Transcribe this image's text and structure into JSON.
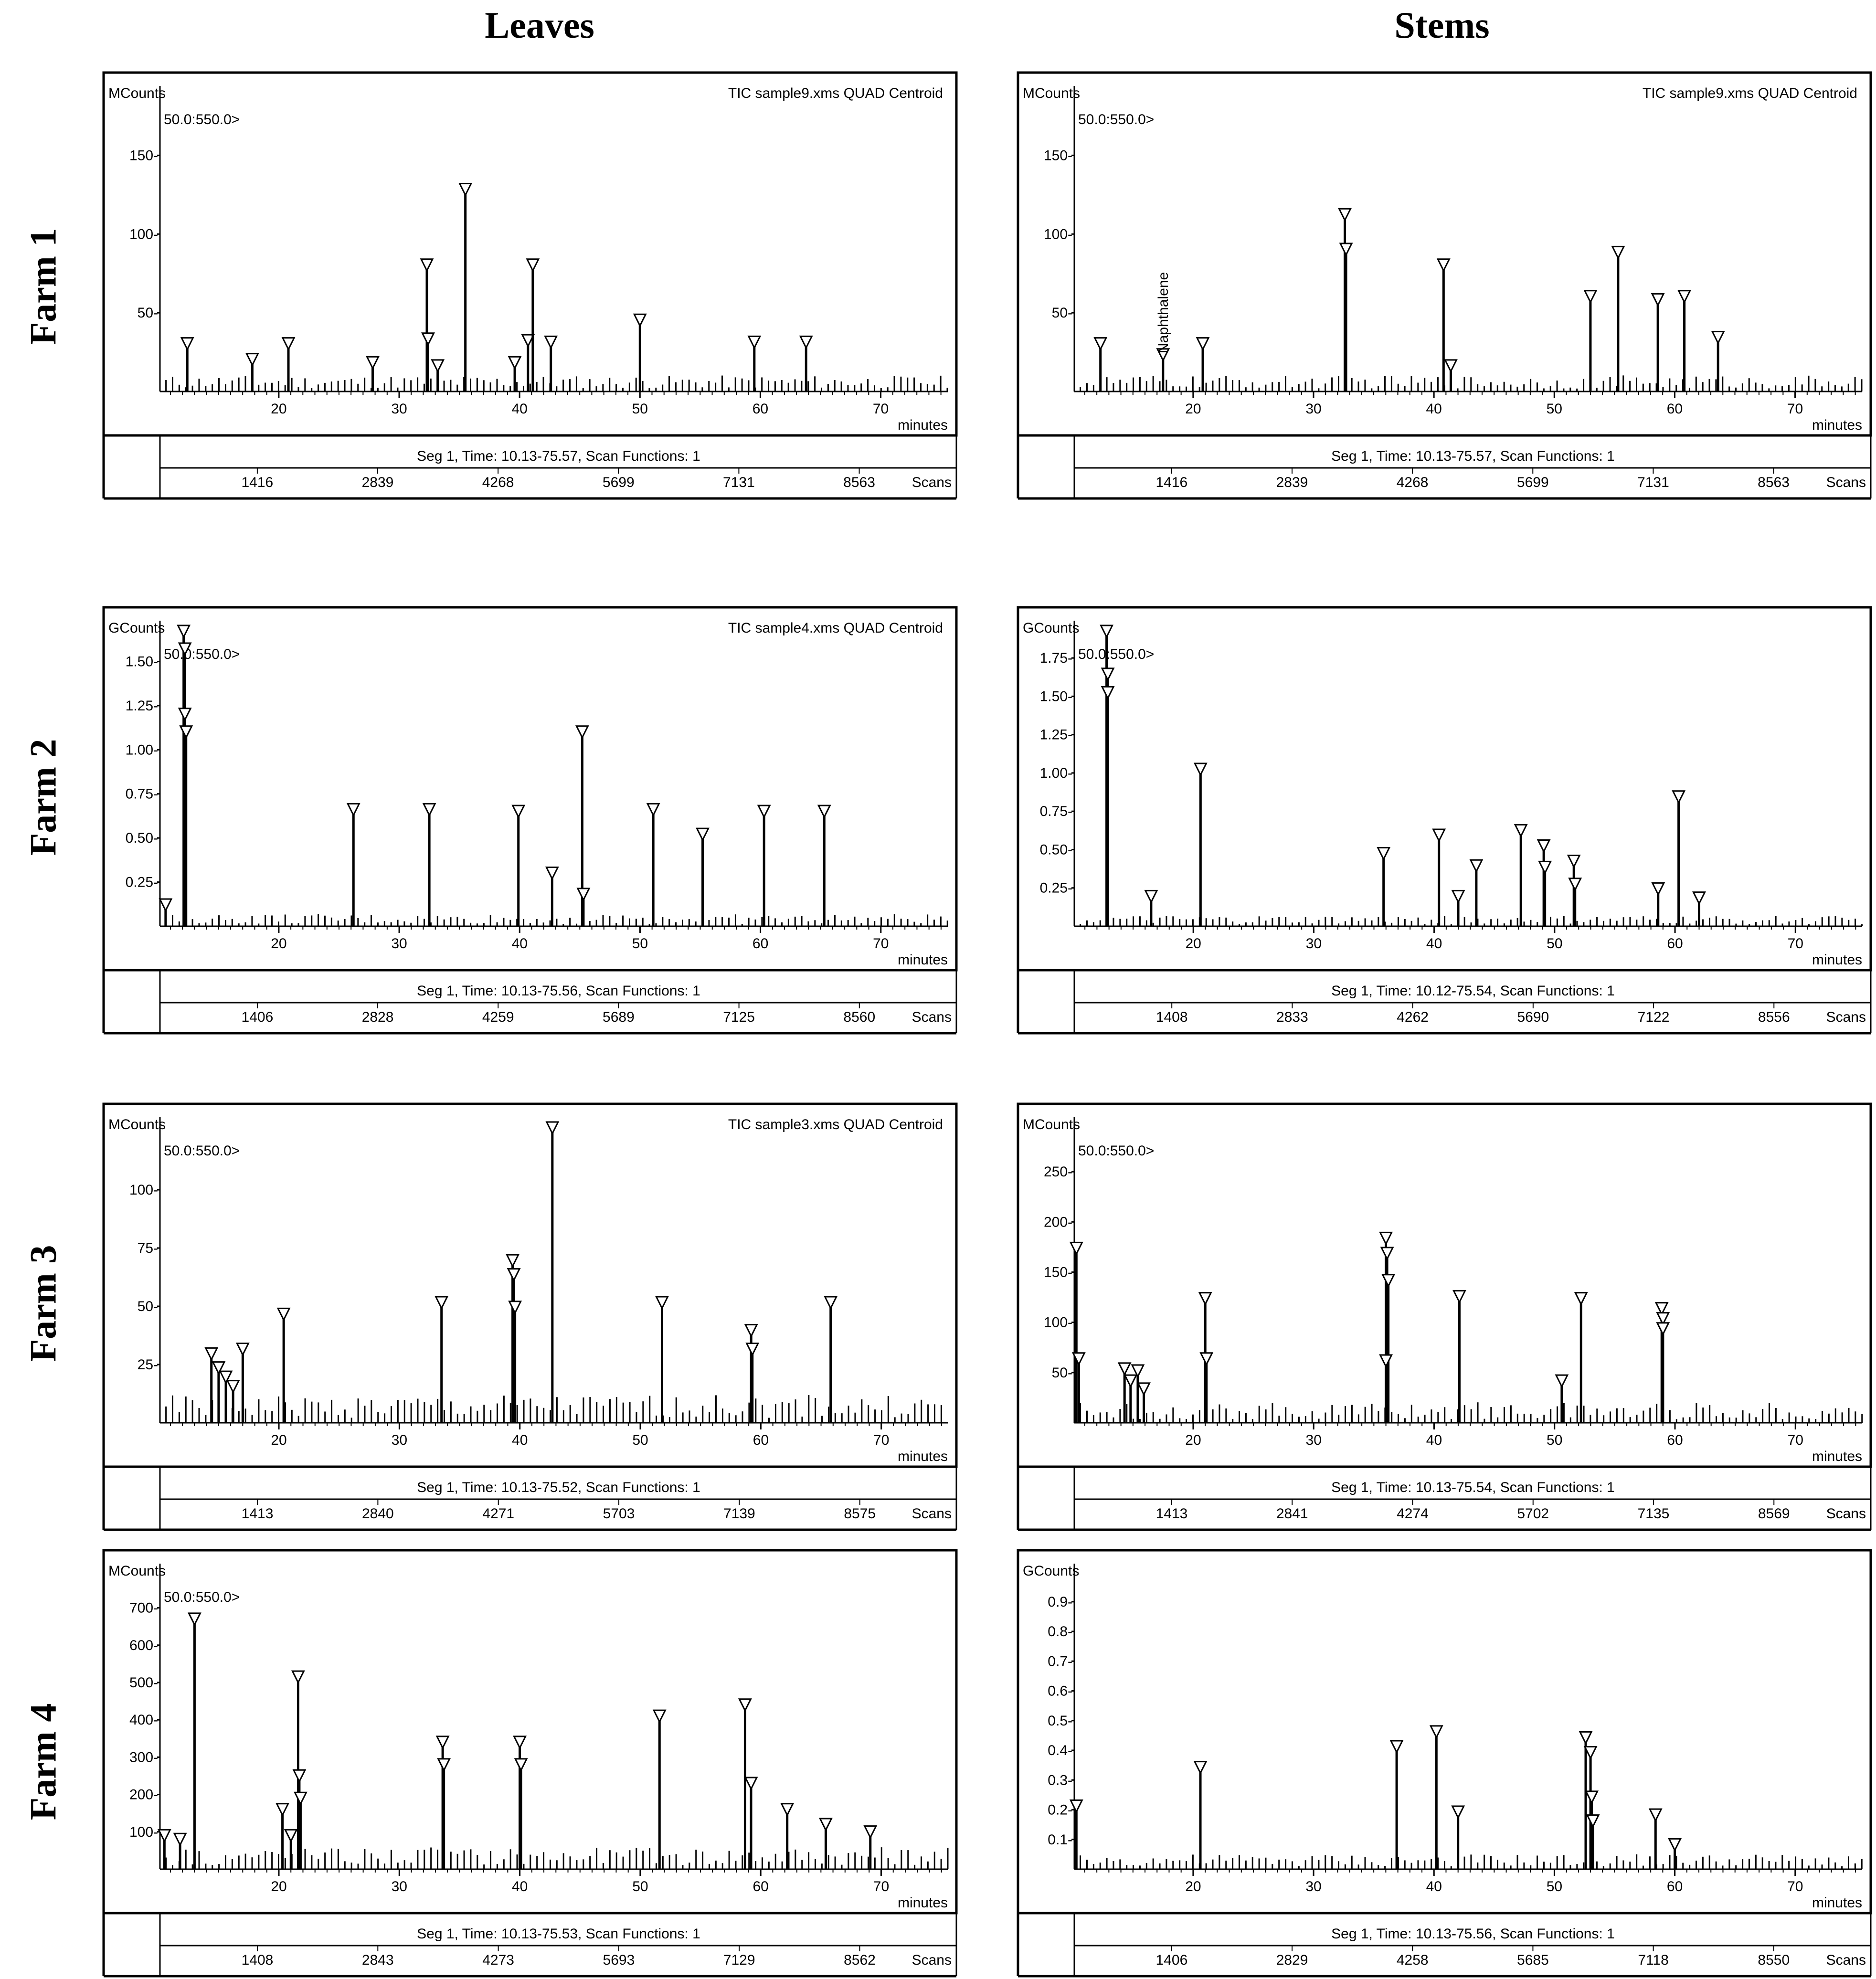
{
  "headers": {
    "col_left": "Leaves",
    "col_right": "Stems"
  },
  "rows": [
    "Farm 1",
    "Farm 2",
    "Farm 3",
    "Farm 4"
  ],
  "chart_data": [
    {
      "id": "farm1-leaves",
      "type": "line",
      "unit_label": "MCounts",
      "mass_range": "50.0:550.0>",
      "header": "TIC sample9.xms QUAD Centroid",
      "xlabel": "minutes",
      "xlim": [
        10.13,
        75.57
      ],
      "ylim": [
        0,
        185
      ],
      "xticks": [
        20,
        30,
        40,
        50,
        60,
        70
      ],
      "yticks": [
        50,
        100,
        150
      ],
      "ytick_labels": [
        "50-",
        "100-",
        "150-"
      ],
      "seg_info": "Seg 1, Time: 10.13-75.57, Scan Functions: 1",
      "scans": [
        "1416",
        "2839",
        "4268",
        "5699",
        "7131",
        "8563"
      ],
      "scans_label": "Scans",
      "peaks": [
        [
          12.4,
          28
        ],
        [
          17.8,
          18
        ],
        [
          20.8,
          28
        ],
        [
          27.8,
          16
        ],
        [
          32.3,
          78
        ],
        [
          32.4,
          31
        ],
        [
          33.2,
          14
        ],
        [
          35.5,
          126
        ],
        [
          39.6,
          16
        ],
        [
          40.7,
          30
        ],
        [
          41.1,
          78
        ],
        [
          42.6,
          29
        ],
        [
          50.0,
          43
        ],
        [
          59.5,
          29
        ],
        [
          63.8,
          29
        ]
      ],
      "noise": 6
    },
    {
      "id": "farm1-stems",
      "type": "line",
      "unit_label": "MCounts",
      "mass_range": "50.0:550.0>",
      "header": "TIC sample9.xms QUAD Centroid",
      "xlabel": "minutes",
      "xlim": [
        10.13,
        75.57
      ],
      "ylim": [
        0,
        185
      ],
      "xticks": [
        20,
        30,
        40,
        50,
        60,
        70
      ],
      "yticks": [
        50,
        100,
        150
      ],
      "ytick_labels": [
        "50-",
        "100-",
        "150-"
      ],
      "seg_info": "Seg 1, Time: 10.13-75.57, Scan Functions: 1",
      "scans": [
        "1416",
        "2839",
        "4268",
        "5699",
        "7131",
        "8563"
      ],
      "scans_label": "Scans",
      "peaks": [
        [
          12.3,
          28
        ],
        [
          17.5,
          21
        ],
        [
          20.8,
          28
        ],
        [
          32.6,
          110
        ],
        [
          32.7,
          88
        ],
        [
          40.8,
          78
        ],
        [
          41.4,
          14
        ],
        [
          53.0,
          58
        ],
        [
          55.3,
          86
        ],
        [
          58.6,
          56
        ],
        [
          60.8,
          58
        ],
        [
          63.6,
          32
        ]
      ],
      "annotations": [
        {
          "x": 17.5,
          "text": "Naphthalene"
        }
      ],
      "noise": 6
    },
    {
      "id": "farm2-leaves",
      "type": "line",
      "unit_label": "GCounts",
      "mass_range": "50.0:550.0>",
      "header": "TIC sample4.xms QUAD Centroid",
      "xlabel": "minutes",
      "xlim": [
        10.13,
        75.56
      ],
      "ylim": [
        0,
        1.65
      ],
      "xticks": [
        20,
        30,
        40,
        50,
        60,
        70
      ],
      "yticks": [
        0.25,
        0.5,
        0.75,
        1.0,
        1.25,
        1.5
      ],
      "ytick_labels": [
        "0.25-",
        "0.50-",
        "0.75-",
        "1.00-",
        "1.25-",
        "1.50-"
      ],
      "seg_info": "Seg 1, Time: 10.13-75.56, Scan Functions: 1",
      "scans": [
        "1406",
        "2828",
        "4259",
        "5689",
        "7125",
        "8560"
      ],
      "scans_label": "Scans",
      "peaks": [
        [
          10.6,
          0.1
        ],
        [
          12.1,
          1.65
        ],
        [
          12.2,
          1.55
        ],
        [
          12.2,
          1.18
        ],
        [
          12.3,
          1.08
        ],
        [
          26.2,
          0.64
        ],
        [
          32.5,
          0.64
        ],
        [
          39.9,
          0.63
        ],
        [
          42.7,
          0.28
        ],
        [
          45.2,
          1.08
        ],
        [
          45.3,
          0.16
        ],
        [
          51.1,
          0.64
        ],
        [
          55.2,
          0.5
        ],
        [
          60.3,
          0.63
        ],
        [
          65.3,
          0.63
        ]
      ],
      "noise": 0.04
    },
    {
      "id": "farm2-stems",
      "type": "line",
      "unit_label": "GCounts",
      "mass_range": "50.0:550.0>",
      "header": "",
      "xlabel": "minutes",
      "xlim": [
        10.12,
        75.54
      ],
      "ylim": [
        0,
        1.9
      ],
      "xticks": [
        20,
        30,
        40,
        50,
        60,
        70
      ],
      "yticks": [
        0.25,
        0.5,
        0.75,
        1.0,
        1.25,
        1.5,
        1.75
      ],
      "ytick_labels": [
        "0.25-",
        "0.50-",
        "0.75-",
        "1.00-",
        "1.25-",
        "1.50-",
        "1.75-"
      ],
      "seg_info": "Seg 1, Time: 10.12-75.54, Scan Functions: 1",
      "scans": [
        "1408",
        "2833",
        "4262",
        "5690",
        "7122",
        "8556"
      ],
      "scans_label": "Scans",
      "peaks": [
        [
          12.8,
          1.9
        ],
        [
          12.9,
          1.62
        ],
        [
          12.9,
          1.5
        ],
        [
          16.5,
          0.17
        ],
        [
          20.6,
          1.0
        ],
        [
          35.8,
          0.45
        ],
        [
          40.4,
          0.57
        ],
        [
          42.0,
          0.17
        ],
        [
          43.5,
          0.37
        ],
        [
          47.2,
          0.6
        ],
        [
          49.1,
          0.5
        ],
        [
          49.2,
          0.36
        ],
        [
          51.6,
          0.4
        ],
        [
          51.7,
          0.25
        ],
        [
          58.6,
          0.22
        ],
        [
          60.3,
          0.82
        ],
        [
          62.0,
          0.16
        ]
      ],
      "noise": 0.04
    },
    {
      "id": "farm3-leaves",
      "type": "line",
      "unit_label": "MCounts",
      "mass_range": "50.0:550.0>",
      "header": "TIC sample3.xms QUAD Centroid",
      "xlabel": "minutes",
      "xlim": [
        10.13,
        75.52
      ],
      "ylim": [
        0,
        125
      ],
      "xticks": [
        20,
        30,
        40,
        50,
        60,
        70
      ],
      "yticks": [
        25,
        50,
        75,
        100
      ],
      "ytick_labels": [
        "25-",
        "50-",
        "75-",
        "100-"
      ],
      "seg_info": "Seg 1, Time: 10.13-75.52, Scan Functions: 1",
      "scans": [
        "1413",
        "2840",
        "4271",
        "5703",
        "7139",
        "8575"
      ],
      "scans_label": "Scans",
      "peaks": [
        [
          14.4,
          28
        ],
        [
          15.0,
          22
        ],
        [
          15.6,
          18
        ],
        [
          16.2,
          14
        ],
        [
          17.0,
          30
        ],
        [
          20.4,
          45
        ],
        [
          33.5,
          50
        ],
        [
          39.4,
          68
        ],
        [
          39.5,
          62
        ],
        [
          39.6,
          48
        ],
        [
          42.7,
          125
        ],
        [
          51.8,
          50
        ],
        [
          59.2,
          38
        ],
        [
          59.3,
          30
        ],
        [
          65.8,
          50
        ]
      ],
      "noise": 7
    },
    {
      "id": "farm3-stems",
      "type": "line",
      "unit_label": "MCounts",
      "mass_range": "50.0:550.0>",
      "header": "",
      "xlabel": "minutes",
      "xlim": [
        10.13,
        75.54
      ],
      "ylim": [
        0,
        290
      ],
      "xticks": [
        20,
        30,
        40,
        50,
        60,
        70
      ],
      "yticks": [
        50,
        100,
        150,
        200,
        250
      ],
      "ytick_labels": [
        "50-",
        "100-",
        "150-",
        "200-",
        "250-"
      ],
      "seg_info": "Seg 1, Time: 10.13-75.54, Scan Functions: 1",
      "scans": [
        "1413",
        "2841",
        "4274",
        "5702",
        "7135",
        "8569"
      ],
      "scans_label": "Scans",
      "peaks": [
        [
          10.3,
          170
        ],
        [
          10.5,
          60
        ],
        [
          14.3,
          50
        ],
        [
          14.8,
          38
        ],
        [
          15.4,
          48
        ],
        [
          15.9,
          30
        ],
        [
          21.0,
          120
        ],
        [
          21.1,
          60
        ],
        [
          36.0,
          180
        ],
        [
          36.1,
          165
        ],
        [
          36.2,
          138
        ],
        [
          36.0,
          58
        ],
        [
          42.1,
          122
        ],
        [
          50.6,
          38
        ],
        [
          52.2,
          120
        ],
        [
          58.9,
          110
        ],
        [
          59.0,
          100
        ],
        [
          59.0,
          90
        ]
      ],
      "noise": 12
    },
    {
      "id": "farm4-leaves",
      "type": "line",
      "unit_label": "MCounts",
      "mass_range": "50.0:550.0>",
      "header": "",
      "xlabel": "minutes",
      "xlim": [
        10.13,
        75.53
      ],
      "ylim": [
        0,
        780
      ],
      "xticks": [
        20,
        30,
        40,
        50,
        60,
        70
      ],
      "yticks": [
        100,
        200,
        300,
        400,
        500,
        600,
        700
      ],
      "ytick_labels": [
        "100-",
        "200-",
        "300-",
        "400-",
        "500-",
        "600-",
        "700-"
      ],
      "seg_info": "Seg 1, Time: 10.13-75.53, Scan Functions: 1",
      "scans": [
        "1408",
        "2843",
        "4273",
        "5693",
        "7129",
        "8562"
      ],
      "scans_label": "Scans",
      "peaks": [
        [
          10.5,
          80
        ],
        [
          11.8,
          70
        ],
        [
          13.0,
          660
        ],
        [
          20.3,
          150
        ],
        [
          21.0,
          80
        ],
        [
          21.6,
          505
        ],
        [
          21.7,
          240
        ],
        [
          21.8,
          180
        ],
        [
          33.6,
          330
        ],
        [
          33.7,
          270
        ],
        [
          40.0,
          330
        ],
        [
          40.1,
          270
        ],
        [
          51.6,
          400
        ],
        [
          58.7,
          430
        ],
        [
          59.2,
          220
        ],
        [
          62.2,
          150
        ],
        [
          65.4,
          110
        ],
        [
          69.1,
          90
        ]
      ],
      "noise": 35
    },
    {
      "id": "farm4-stems",
      "type": "line",
      "unit_label": "GCounts",
      "mass_range": "",
      "header": "",
      "xlabel": "minutes",
      "xlim": [
        10.13,
        75.56
      ],
      "ylim": [
        0,
        0.98
      ],
      "xticks": [
        20,
        30,
        40,
        50,
        60,
        70
      ],
      "yticks": [
        0.1,
        0.2,
        0.3,
        0.4,
        0.5,
        0.6,
        0.7,
        0.8,
        0.9
      ],
      "ytick_labels": [
        "0.1-",
        "0.2-",
        "0.3-",
        "0.4-",
        "0.5-",
        "0.6-",
        "0.7-",
        "0.8-",
        "0.9-"
      ],
      "seg_info": "Seg 1, Time: 10.13-75.56, Scan Functions: 1",
      "scans": [
        "1406",
        "2829",
        "4258",
        "5685",
        "7118",
        "8550"
      ],
      "scans_label": "Scans",
      "peaks": [
        [
          10.3,
          0.2
        ],
        [
          20.6,
          0.33
        ],
        [
          36.9,
          0.4
        ],
        [
          40.2,
          0.45
        ],
        [
          42.0,
          0.18
        ],
        [
          52.6,
          0.43
        ],
        [
          53.0,
          0.38
        ],
        [
          53.1,
          0.23
        ],
        [
          53.2,
          0.15
        ],
        [
          58.4,
          0.17
        ],
        [
          60.0,
          0.07
        ]
      ],
      "noise": 0.03
    }
  ]
}
